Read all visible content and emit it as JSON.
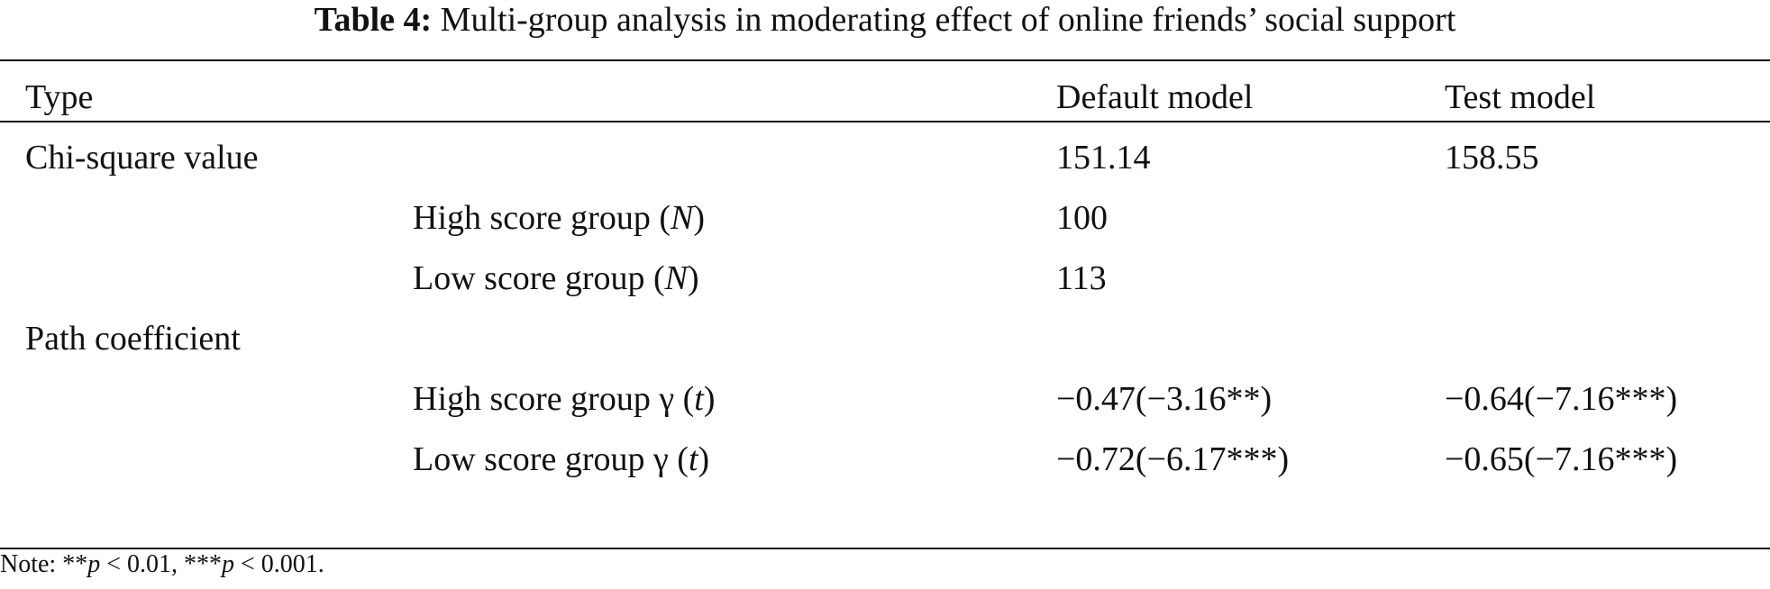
{
  "caption": {
    "label": "Table 4:",
    "text": "Multi-group analysis in moderating effect of online friends’ social support"
  },
  "table": {
    "headers": {
      "type": "Type",
      "default": "Default model",
      "test": "Test model"
    },
    "chi_square": {
      "label": "Chi-square value",
      "default": "151.14",
      "test": "158.55"
    },
    "high_n": {
      "label": "High score group",
      "symbol": "N",
      "default": "100"
    },
    "low_n": {
      "label": "Low score group",
      "symbol": "N",
      "default": "113"
    },
    "path": {
      "label": "Path coefficient"
    },
    "high_gamma": {
      "label": "High score group γ",
      "symbol": "t",
      "default": "−0.47(−3.16**)",
      "test": "−0.64(−7.16***)"
    },
    "low_gamma": {
      "label": "Low score group γ",
      "symbol": "t",
      "default": "−0.72(−6.17***)",
      "test": "−0.65(−7.16***)"
    }
  },
  "note": {
    "prefix": "Note: **",
    "p1": "p",
    "t1": " < 0.01, ***",
    "p2": "p",
    "t2": " < 0.001."
  }
}
